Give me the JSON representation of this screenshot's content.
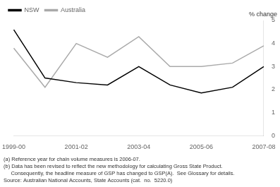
{
  "chart_data": {
    "type": "line",
    "categories": [
      "1999-00",
      null,
      "2001-02",
      null,
      "2003-04",
      null,
      "2005-06",
      null,
      "2007-08"
    ],
    "series": [
      {
        "name": "NSW",
        "color": "#000000",
        "values": [
          4.6,
          2.5,
          2.3,
          2.2,
          3.0,
          2.2,
          1.85,
          2.1,
          3.0
        ]
      },
      {
        "name": "Australia",
        "color": "#aaaaaa",
        "values": [
          3.8,
          2.1,
          4.0,
          3.4,
          4.3,
          3.0,
          3.0,
          3.15,
          3.9
        ]
      }
    ],
    "ylim": [
      0,
      5
    ],
    "yticks": [
      0,
      1,
      2,
      3,
      4,
      5
    ],
    "y_label": "% change",
    "annotations": [
      "(a) Reference year for chain volume measures is 2006-07.",
      "(b) Data has been revised to reflect the new methodology for calculating Gross State Product.",
      "     Consequently, the headline measure of GSP has changed to GSP(A).  See Glossary for details.",
      "Source: Australian National Accounts, State Accounts (cat.  no.  5220.0)"
    ],
    "grid": false,
    "legend": "top"
  }
}
